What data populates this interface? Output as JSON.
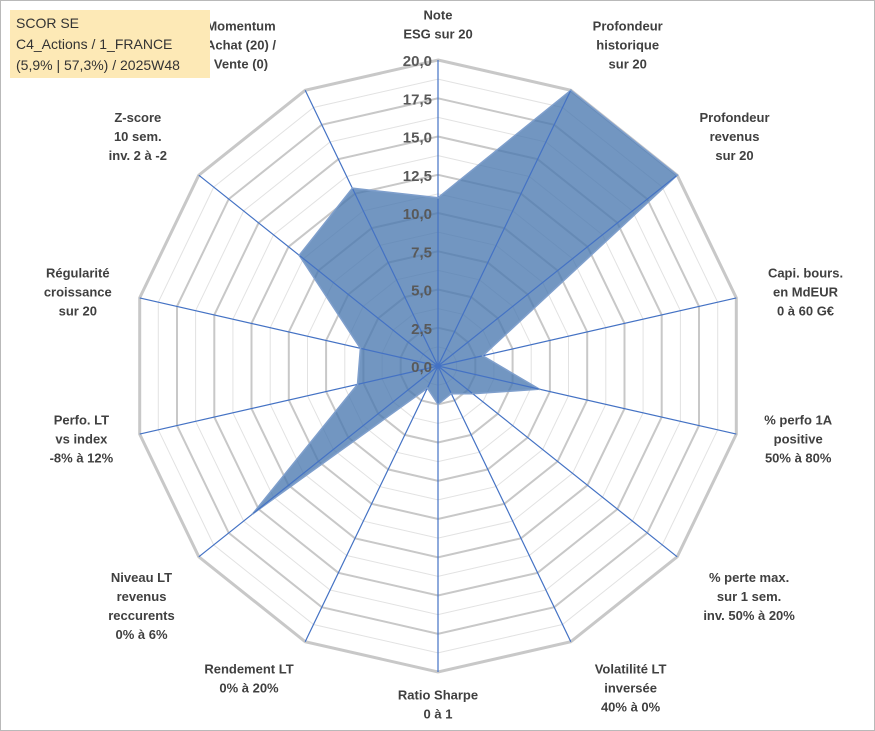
{
  "title": {
    "line1": "SCOR SE",
    "line2": "C4_Actions / 1_FRANCE",
    "line3": "(5,9% | 57,3%) / 2025W48"
  },
  "colors": {
    "fill": "#4a78b0",
    "outline": "#7f9fcc",
    "spoke": "#4472c4",
    "grid_major": "#c8c8c8",
    "grid_minor": "#e2e2e2",
    "title_bg": "#fde9b6"
  },
  "chart_data": {
    "type": "radar",
    "rmax": 20,
    "tick_step": 2.5,
    "minor_step": 1.25,
    "ticks": [
      "0,0",
      "2,5",
      "5,0",
      "7,5",
      "10,0",
      "12,5",
      "15,0",
      "17,5",
      "20,0"
    ],
    "axes": [
      {
        "lines": [
          "Note",
          "ESG sur 20"
        ],
        "value": 11.0
      },
      {
        "lines": [
          "Profondeur",
          "historique",
          "sur 20"
        ],
        "value": 20.0
      },
      {
        "lines": [
          "Profondeur",
          "revenus",
          "sur 20"
        ],
        "value": 20.0
      },
      {
        "lines": [
          "Capi. bours.",
          "en MdEUR",
          "0 à 60 G€"
        ],
        "value": 3.0
      },
      {
        "lines": [
          "% perfo 1A",
          "positive",
          "50% à 80%"
        ],
        "value": 6.8
      },
      {
        "lines": [
          "% perte max.",
          "sur 1 sem.",
          "inv. 50% à 20%"
        ],
        "value": 2.9
      },
      {
        "lines": [
          "Volatilité LT",
          "inversée",
          "40% à 0%"
        ],
        "value": 2.0
      },
      {
        "lines": [
          "Ratio Sharpe",
          "0 à 1"
        ],
        "value": 2.5
      },
      {
        "lines": [
          "Rendement LT",
          "0% à 20%"
        ],
        "value": 1.6
      },
      {
        "lines": [
          "Niveau LT",
          "revenus",
          "reccurents",
          "0% à 6%"
        ],
        "value": 15.5
      },
      {
        "lines": [
          "Perfo. LT",
          "vs index",
          "-8% à 12%"
        ],
        "value": 5.4
      },
      {
        "lines": [
          "Régularité",
          "croissance",
          "sur 20"
        ],
        "value": 5.2
      },
      {
        "lines": [
          "Z-score",
          "10 sem.",
          "inv. 2 à -2"
        ],
        "value": 11.6
      },
      {
        "lines": [
          "Momentum",
          "Achat (20) /",
          "Vente (0)"
        ],
        "value": 12.9
      }
    ]
  }
}
